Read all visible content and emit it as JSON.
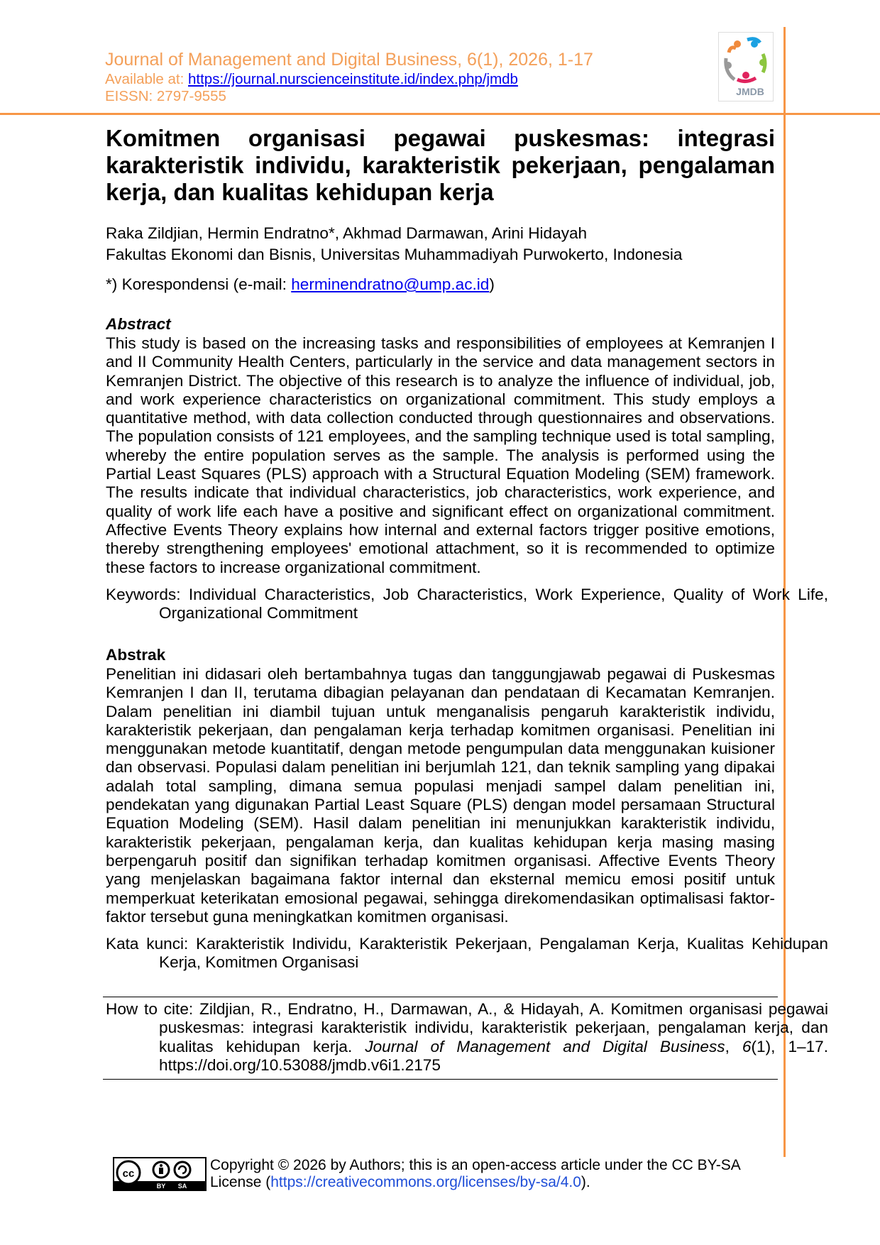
{
  "header": {
    "journal_line": "Journal of Management and Digital Business, 6(1), 2026, 1-17",
    "available_label": "Available at: ",
    "available_url": "https://journal.nurscienceinstitute.id/index.php/jmdb",
    "eissn": "EISSN: 2797-9555",
    "logo_text": "JMDB",
    "accent_color": "#f79646"
  },
  "article": {
    "title": "Komitmen organisasi pegawai puskesmas: integrasi karakteristik individu, karakteristik pekerjaan, pengalaman kerja, dan kualitas kehidupan kerja",
    "authors": "Raka Zildjian, Hermin Endratno*, Akhmad Darmawan, Arini Hidayah",
    "affiliation": "Fakultas Ekonomi dan Bisnis, Universitas Muhammadiyah Purwokerto, Indonesia",
    "correspondence_prefix": "*) Korespondensi (e-mail: ",
    "correspondence_email": "herminendratno@ump.ac.id",
    "correspondence_suffix": ")"
  },
  "abstract_en": {
    "heading": "Abstract",
    "text": "This study is based on the increasing tasks and responsibilities of employees at Kemranjen I and II Community Health Centers, particularly in the service and data management sectors in Kemranjen District. The objective of this research is to analyze the influence of individual, job, and work experience characteristics on organizational commitment. This study employs a quantitative method, with data collection conducted through questionnaires and observations. The population consists of 121 employees, and the sampling technique used is total sampling, whereby the entire population serves as the sample. The analysis is performed using the Partial Least Squares (PLS) approach with a Structural Equation Modeling (SEM) framework. The results indicate that individual characteristics, job characteristics, work experience, and quality of work life each have a positive and significant effect on organizational commitment. Affective Events Theory explains how internal and external factors trigger positive emotions, thereby strengthening employees' emotional attachment, so it is recommended to optimize these factors to increase organizational commitment.",
    "keywords": "Keywords: Individual Characteristics, Job Characteristics, Work Experience, Quality of Work Life, Organizational Commitment"
  },
  "abstract_id": {
    "heading": "Abstrak",
    "text": "Penelitian ini didasari oleh bertambahnya tugas dan tanggungjawab pegawai di Puskesmas Kemranjen I dan II, terutama dibagian pelayanan dan pendataan di Kecamatan Kemranjen. Dalam penelitian ini diambil tujuan untuk menganalisis pengaruh karakteristik individu, karakteristik pekerjaan, dan pengalaman kerja terhadap komitmen organisasi. Penelitian ini menggunakan metode kuantitatif, dengan metode pengumpulan data menggunakan kuisioner dan observasi. Populasi dalam penelitian ini berjumlah 121, dan teknik sampling yang dipakai adalah total sampling, dimana semua populasi menjadi sampel dalam penelitian ini, pendekatan yang digunakan Partial Least Square (PLS) dengan model persamaan Structural Equation Modeling (SEM). Hasil dalam penelitian ini menunjukkan karakteristik individu, karakteristik pekerjaan, pengalaman kerja, dan kualitas kehidupan kerja masing masing berpengaruh positif dan signifikan terhadap komitmen organisasi. Affective Events Theory yang menjelaskan bagaimana faktor internal dan eksternal memicu emosi positif untuk memperkuat keterikatan emosional pegawai, sehingga direkomendasikan optimalisasi faktor-faktor tersebut guna meningkatkan komitmen organisasi.",
    "keywords": "Kata kunci: Karakteristik Individu, Karakteristik Pekerjaan, Pengalaman Kerja, Kualitas Kehidupan Kerja, Komitmen Organisasi"
  },
  "citation": {
    "prefix": "How to cite: Zildjian, R., Endratno, H., Darmawan, A., & Hidayah, A. Komitmen organisasi pegawai puskesmas: integrasi karakteristik individu, karakteristik pekerjaan, pengalaman kerja, dan kualitas kehidupan kerja. ",
    "journal": "Journal of Management and Digital Business",
    "sep1": ", ",
    "volume": "6",
    "rest": "(1), 1–17. https://doi.org/10.53088/jmdb.v6i1.2175"
  },
  "footer": {
    "license_badge": {
      "cc": "cc",
      "by": "BY",
      "sa": "SA"
    },
    "copyright_line1": "Copyright © 2026 by Authors; this is an open-access article under the CC BY-SA",
    "license_prefix": "License (",
    "license_url": "https://creativecommons.org/licenses/by-sa/4.0",
    "license_suffix": ")."
  }
}
